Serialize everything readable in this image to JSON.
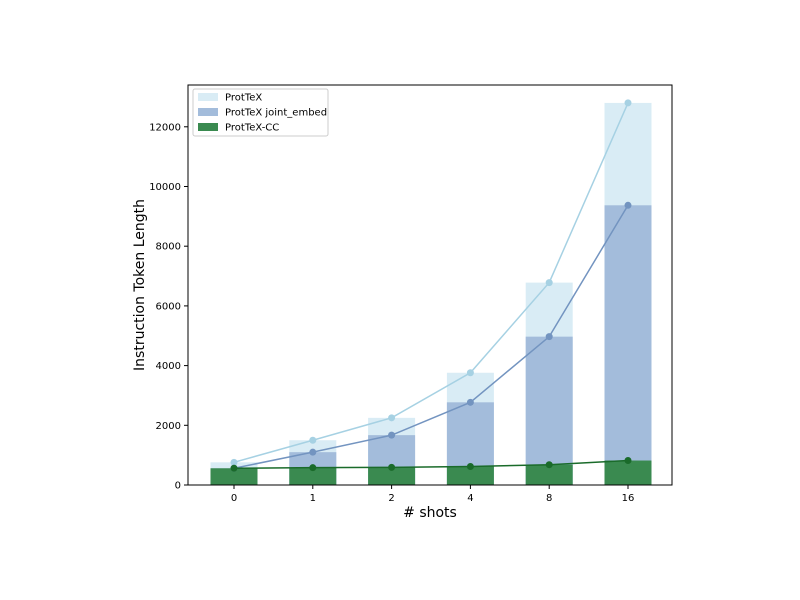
{
  "chart_data": {
    "type": "bar",
    "categories": [
      "0",
      "1",
      "2",
      "4",
      "8",
      "16"
    ],
    "xlabel": "# shots",
    "ylabel": "Instruction Token Length",
    "ylim": [
      0,
      13400
    ],
    "yticks": [
      0,
      2000,
      4000,
      6000,
      8000,
      10000,
      12000
    ],
    "grid": false,
    "legend_position": "top-left",
    "series": [
      {
        "name": "ProtTeX",
        "values": [
          760,
          1500,
          2250,
          3760,
          6780,
          12800
        ],
        "bar_color": "#d9ecf5",
        "line_color": "#a6d1e3"
      },
      {
        "name": "ProtTeX joint_embed",
        "values": [
          560,
          1100,
          1670,
          2770,
          4970,
          9370
        ],
        "bar_color": "#a3bcdb",
        "line_color": "#7394c0"
      },
      {
        "name": "ProtTeX-CC",
        "values": [
          560,
          580,
          590,
          620,
          680,
          820
        ],
        "bar_color": "#3a8a50",
        "line_color": "#1a6b2a"
      }
    ]
  }
}
